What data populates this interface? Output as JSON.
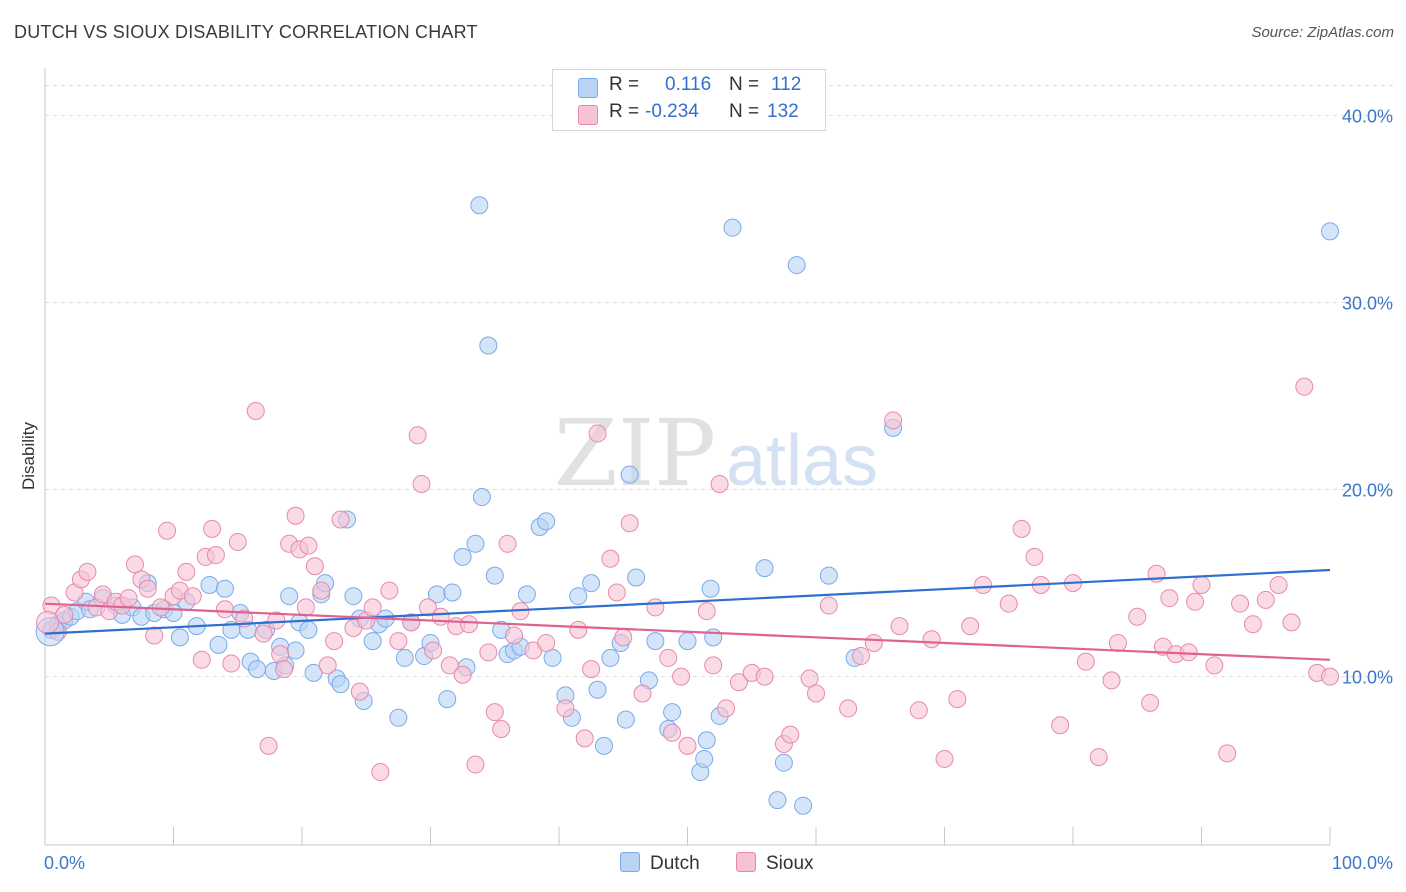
{
  "title": "DUTCH VS SIOUX DISABILITY CORRELATION CHART",
  "source": "Source: ZipAtlas.com",
  "watermark": {
    "zip": "ZIP",
    "atlas": "atlas"
  },
  "legend_top": [
    {
      "r_label": "R =",
      "r_value": "0.116",
      "n_label": "N =",
      "n_value": "112",
      "color": "#7aaae8",
      "fill": "#b9d3f5"
    },
    {
      "r_label": "R =",
      "r_value": "-0.234",
      "n_label": "N =",
      "n_value": "132",
      "color": "#e889ab",
      "fill": "#f7c3d4"
    }
  ],
  "legend_bottom": [
    "Dutch",
    "Sioux"
  ],
  "colors": {
    "dutch_fill": "#b9d3f5",
    "dutch_stroke": "#7aaae8",
    "dutch_line": "#2f6fcf",
    "sioux_fill": "#f7c3d4",
    "sioux_stroke": "#e889ab",
    "sioux_line": "#e0628e",
    "axis_label": "#3a78c9",
    "grid": "#dddddd"
  },
  "chart_data": {
    "type": "scatter",
    "title": "DUTCH VS SIOUX DISABILITY CORRELATION CHART",
    "xlabel": "",
    "ylabel": "Disability",
    "xlim": [
      0,
      100
    ],
    "ylim": [
      1,
      42
    ],
    "x_ticks": [
      "0.0%",
      "100.0%"
    ],
    "y_ticks": [
      {
        "v": 10,
        "label": "10.0%"
      },
      {
        "v": 20,
        "label": "20.0%"
      },
      {
        "v": 30,
        "label": "30.0%"
      },
      {
        "v": 40,
        "label": "40.0%"
      }
    ],
    "grid": true,
    "legend": "top-center",
    "series": [
      {
        "name": "Dutch",
        "trend": [
          [
            0,
            12.3
          ],
          [
            100,
            15.7
          ]
        ],
        "points": [
          [
            0.5,
            12.5
          ],
          [
            1,
            12.8
          ],
          [
            1.5,
            13.0
          ],
          [
            2,
            13.2
          ],
          [
            2.5,
            13.5
          ],
          [
            3.2,
            14.0
          ],
          [
            3.5,
            13.6
          ],
          [
            4.5,
            14.2
          ],
          [
            5.5,
            13.8
          ],
          [
            6,
            13.3
          ],
          [
            6.8,
            13.7
          ],
          [
            7.5,
            13.2
          ],
          [
            8,
            15.0
          ],
          [
            8.5,
            13.4
          ],
          [
            9.3,
            13.6
          ],
          [
            10,
            13.4
          ],
          [
            10.5,
            12.1
          ],
          [
            11,
            14.0
          ],
          [
            11.8,
            12.7
          ],
          [
            12.8,
            14.9
          ],
          [
            13.5,
            11.7
          ],
          [
            14,
            14.7
          ],
          [
            14.5,
            12.5
          ],
          [
            15.2,
            13.4
          ],
          [
            15.8,
            12.5
          ],
          [
            16,
            10.8
          ],
          [
            16.5,
            10.4
          ],
          [
            17.2,
            12.5
          ],
          [
            17.8,
            10.3
          ],
          [
            18.3,
            11.6
          ],
          [
            18.7,
            10.6
          ],
          [
            19,
            14.3
          ],
          [
            19.5,
            11.4
          ],
          [
            19.8,
            12.9
          ],
          [
            20.5,
            12.5
          ],
          [
            20.9,
            10.2
          ],
          [
            21.5,
            14.4
          ],
          [
            21.8,
            15.0
          ],
          [
            22.7,
            9.9
          ],
          [
            23,
            9.6
          ],
          [
            23.5,
            18.4
          ],
          [
            24,
            14.3
          ],
          [
            24.5,
            13.1
          ],
          [
            24.8,
            8.7
          ],
          [
            25.5,
            11.9
          ],
          [
            26,
            12.8
          ],
          [
            26.5,
            13.1
          ],
          [
            27.5,
            7.8
          ],
          [
            28,
            11.0
          ],
          [
            28.5,
            12.9
          ],
          [
            29.5,
            11.1
          ],
          [
            30,
            11.8
          ],
          [
            30.5,
            14.4
          ],
          [
            31.3,
            8.8
          ],
          [
            31.7,
            14.5
          ],
          [
            32.5,
            16.4
          ],
          [
            32.8,
            10.5
          ],
          [
            33.5,
            17.1
          ],
          [
            34,
            19.6
          ],
          [
            34.5,
            27.7
          ],
          [
            35,
            15.4
          ],
          [
            35.5,
            12.5
          ],
          [
            36,
            11.2
          ],
          [
            36.5,
            11.4
          ],
          [
            37,
            11.6
          ],
          [
            37.5,
            14.4
          ],
          [
            38.5,
            18.0
          ],
          [
            39,
            18.3
          ],
          [
            39.5,
            11.0
          ],
          [
            40.5,
            9.0
          ],
          [
            41,
            7.8
          ],
          [
            41.5,
            14.3
          ],
          [
            42.5,
            15.0
          ],
          [
            43,
            9.3
          ],
          [
            43.5,
            6.3
          ],
          [
            44,
            11.0
          ],
          [
            44.8,
            11.8
          ],
          [
            45.2,
            7.7
          ],
          [
            45.5,
            20.8
          ],
          [
            46,
            15.3
          ],
          [
            47,
            9.8
          ],
          [
            47.5,
            11.9
          ],
          [
            48.5,
            7.2
          ],
          [
            48.8,
            8.1
          ],
          [
            50,
            11.9
          ],
          [
            51,
            4.9
          ],
          [
            51.3,
            5.6
          ],
          [
            51.5,
            6.6
          ],
          [
            51.8,
            14.7
          ],
          [
            52,
            12.1
          ],
          [
            52.5,
            7.9
          ],
          [
            53.5,
            34.0
          ],
          [
            56,
            15.8
          ],
          [
            57,
            3.4
          ],
          [
            57.5,
            5.4
          ],
          [
            58.5,
            32.0
          ],
          [
            59,
            3.1
          ],
          [
            61,
            15.4
          ],
          [
            63,
            11.0
          ],
          [
            66,
            23.3
          ],
          [
            100,
            33.8
          ],
          [
            33.8,
            35.2
          ]
        ]
      },
      {
        "name": "Sioux",
        "trend": [
          [
            0,
            13.9
          ],
          [
            100,
            10.9
          ]
        ],
        "points": [
          [
            0.5,
            13.8
          ],
          [
            1,
            12.4
          ],
          [
            1.5,
            13.3
          ],
          [
            2.3,
            14.5
          ],
          [
            2.8,
            15.2
          ],
          [
            3.3,
            15.6
          ],
          [
            4,
            13.7
          ],
          [
            4.5,
            14.4
          ],
          [
            5,
            13.5
          ],
          [
            5.5,
            14.0
          ],
          [
            6,
            13.8
          ],
          [
            6.5,
            14.2
          ],
          [
            7,
            16.0
          ],
          [
            7.5,
            15.2
          ],
          [
            8,
            14.7
          ],
          [
            8.5,
            12.2
          ],
          [
            9,
            13.7
          ],
          [
            9.5,
            17.8
          ],
          [
            10,
            14.3
          ],
          [
            10.5,
            14.6
          ],
          [
            11,
            15.6
          ],
          [
            11.5,
            14.3
          ],
          [
            12.2,
            10.9
          ],
          [
            12.5,
            16.4
          ],
          [
            13,
            17.9
          ],
          [
            13.3,
            16.5
          ],
          [
            14,
            13.6
          ],
          [
            14.5,
            10.7
          ],
          [
            15,
            17.2
          ],
          [
            15.5,
            13.1
          ],
          [
            16.4,
            24.2
          ],
          [
            17,
            12.3
          ],
          [
            17.4,
            6.3
          ],
          [
            18,
            13.0
          ],
          [
            18.3,
            11.2
          ],
          [
            18.6,
            10.4
          ],
          [
            19,
            17.1
          ],
          [
            19.5,
            18.6
          ],
          [
            19.8,
            16.8
          ],
          [
            20.3,
            13.7
          ],
          [
            20.5,
            17.0
          ],
          [
            21,
            15.9
          ],
          [
            21.5,
            14.6
          ],
          [
            22,
            10.6
          ],
          [
            22.5,
            11.9
          ],
          [
            23,
            18.4
          ],
          [
            24,
            12.6
          ],
          [
            24.5,
            9.2
          ],
          [
            25,
            13.0
          ],
          [
            25.5,
            13.7
          ],
          [
            26.1,
            4.9
          ],
          [
            26.8,
            14.6
          ],
          [
            27.5,
            11.9
          ],
          [
            28.5,
            12.9
          ],
          [
            29,
            22.9
          ],
          [
            29.3,
            20.3
          ],
          [
            29.8,
            13.7
          ],
          [
            30.2,
            11.4
          ],
          [
            30.8,
            13.2
          ],
          [
            31.5,
            10.6
          ],
          [
            32,
            12.7
          ],
          [
            32.5,
            10.1
          ],
          [
            33,
            12.8
          ],
          [
            33.5,
            5.3
          ],
          [
            34.5,
            11.3
          ],
          [
            35,
            8.1
          ],
          [
            35.5,
            7.2
          ],
          [
            36,
            17.1
          ],
          [
            36.5,
            12.2
          ],
          [
            37,
            13.5
          ],
          [
            38,
            11.4
          ],
          [
            39,
            11.8
          ],
          [
            40.5,
            8.3
          ],
          [
            41.5,
            12.5
          ],
          [
            42,
            6.7
          ],
          [
            42.5,
            10.4
          ],
          [
            43,
            23.0
          ],
          [
            44,
            16.3
          ],
          [
            44.5,
            14.5
          ],
          [
            45,
            12.1
          ],
          [
            45.5,
            18.2
          ],
          [
            46.5,
            9.1
          ],
          [
            47.5,
            13.7
          ],
          [
            48.5,
            11.0
          ],
          [
            48.8,
            7.0
          ],
          [
            49.5,
            10.0
          ],
          [
            50,
            6.3
          ],
          [
            51.5,
            13.5
          ],
          [
            52,
            10.6
          ],
          [
            52.5,
            20.3
          ],
          [
            53,
            8.3
          ],
          [
            54,
            9.7
          ],
          [
            55,
            10.2
          ],
          [
            56,
            10.0
          ],
          [
            57.5,
            6.4
          ],
          [
            58,
            6.9
          ],
          [
            59.5,
            9.9
          ],
          [
            60,
            9.1
          ],
          [
            61,
            13.8
          ],
          [
            62.5,
            8.3
          ],
          [
            63.5,
            11.1
          ],
          [
            64.5,
            11.8
          ],
          [
            66,
            23.7
          ],
          [
            66.5,
            12.7
          ],
          [
            68,
            8.2
          ],
          [
            69,
            12.0
          ],
          [
            70,
            5.6
          ],
          [
            71,
            8.8
          ],
          [
            72,
            12.7
          ],
          [
            73,
            14.9
          ],
          [
            75,
            13.9
          ],
          [
            76,
            17.9
          ],
          [
            77,
            16.4
          ],
          [
            77.5,
            14.9
          ],
          [
            79,
            7.4
          ],
          [
            80,
            15.0
          ],
          [
            81,
            10.8
          ],
          [
            82,
            5.7
          ],
          [
            83,
            9.8
          ],
          [
            83.5,
            11.8
          ],
          [
            85,
            13.2
          ],
          [
            86,
            8.6
          ],
          [
            86.5,
            15.5
          ],
          [
            87,
            11.6
          ],
          [
            87.5,
            14.2
          ],
          [
            88,
            11.2
          ],
          [
            89,
            11.3
          ],
          [
            89.5,
            14.0
          ],
          [
            90,
            14.9
          ],
          [
            91,
            10.6
          ],
          [
            92,
            5.9
          ],
          [
            93,
            13.9
          ],
          [
            94,
            12.8
          ],
          [
            95,
            14.1
          ],
          [
            96,
            14.9
          ],
          [
            97,
            12.9
          ],
          [
            98,
            25.5
          ],
          [
            99,
            10.2
          ],
          [
            100,
            10.0
          ]
        ]
      }
    ]
  }
}
